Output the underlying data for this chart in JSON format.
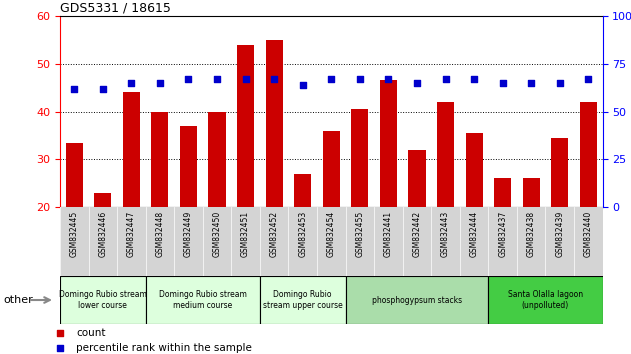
{
  "title": "GDS5331 / 18615",
  "samples": [
    "GSM832445",
    "GSM832446",
    "GSM832447",
    "GSM832448",
    "GSM832449",
    "GSM832450",
    "GSM832451",
    "GSM832452",
    "GSM832453",
    "GSM832454",
    "GSM832455",
    "GSM832441",
    "GSM832442",
    "GSM832443",
    "GSM832444",
    "GSM832437",
    "GSM832438",
    "GSM832439",
    "GSM832440"
  ],
  "counts": [
    33.5,
    23.0,
    44.0,
    40.0,
    37.0,
    40.0,
    54.0,
    55.0,
    27.0,
    36.0,
    40.5,
    46.5,
    32.0,
    42.0,
    35.5,
    26.0,
    26.0,
    34.5,
    42.0
  ],
  "percentiles": [
    62,
    62,
    65,
    65,
    67,
    67,
    67,
    67,
    64,
    67,
    67,
    67,
    65,
    67,
    67,
    65,
    65,
    65,
    67
  ],
  "ylim_left": [
    20,
    60
  ],
  "ylim_right": [
    0,
    100
  ],
  "yticks_left": [
    20,
    30,
    40,
    50,
    60
  ],
  "yticks_right": [
    0,
    25,
    50,
    75,
    100
  ],
  "bar_color": "#cc0000",
  "dot_color": "#0000cc",
  "groups": [
    {
      "label": "Domingo Rubio stream\nlower course",
      "start": 0,
      "end": 3,
      "color": "#ddffdd"
    },
    {
      "label": "Domingo Rubio stream\nmedium course",
      "start": 3,
      "end": 7,
      "color": "#ddffdd"
    },
    {
      "label": "Domingo Rubio\nstream upper course",
      "start": 7,
      "end": 10,
      "color": "#ddffdd"
    },
    {
      "label": "phosphogypsum stacks",
      "start": 10,
      "end": 15,
      "color": "#aaddaa"
    },
    {
      "label": "Santa Olalla lagoon\n(unpolluted)",
      "start": 15,
      "end": 19,
      "color": "#44cc44"
    }
  ],
  "legend_count_label": "count",
  "legend_pct_label": "percentile rank within the sample",
  "xlabel_other": "other"
}
